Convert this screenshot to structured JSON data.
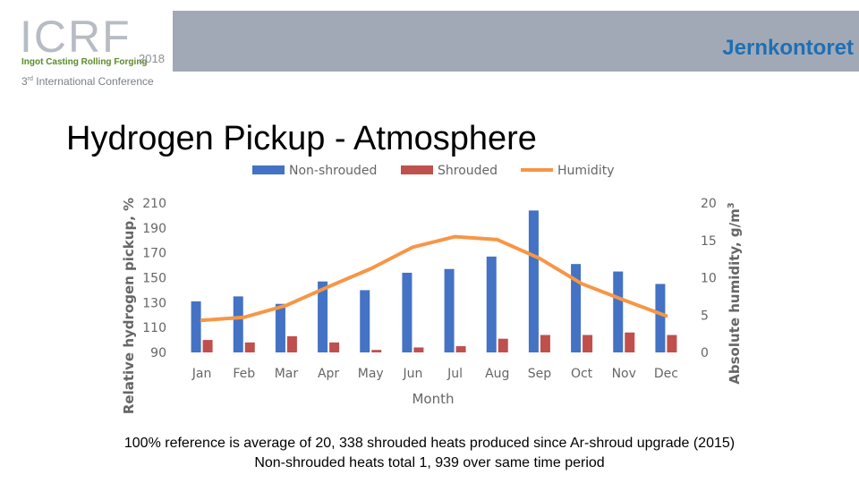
{
  "header": {
    "logo_text": "ICRF",
    "logo_tagline": "Ingot Casting Rolling Forging",
    "logo_year": "2018",
    "conference_prefix": "3",
    "conference_sup": "rd",
    "conference_rest": " International Conference",
    "organization": "Jernkontoret"
  },
  "slide": {
    "title": "Hydrogen Pickup - Atmosphere",
    "caption_line1": "100% reference is average of 20, 338 shrouded heats produced since Ar-shroud upgrade (2015)",
    "caption_line2": "Non-shrouded heats total 1, 939 over same time period"
  },
  "colors": {
    "header_band": "#a1a9b6",
    "non_shrouded": "#4472c4",
    "shrouded": "#c0504d",
    "humidity": "#f79646",
    "organization": "#1f6fb3"
  },
  "chart_data": {
    "type": "bar",
    "categories": [
      "Jan",
      "Feb",
      "Mar",
      "Apr",
      "May",
      "Jun",
      "Jul",
      "Aug",
      "Sep",
      "Oct",
      "Nov",
      "Dec"
    ],
    "series": [
      {
        "name": "Non-shrouded",
        "type": "bar",
        "axis": "left",
        "color": "#4472c4",
        "values": [
          131,
          135,
          129,
          147,
          140,
          154,
          157,
          167,
          204,
          161,
          155,
          145
        ]
      },
      {
        "name": "Shrouded",
        "type": "bar",
        "axis": "left",
        "color": "#c0504d",
        "values": [
          100,
          98,
          103,
          98,
          92,
          94,
          95,
          101,
          104,
          104,
          106,
          104
        ]
      },
      {
        "name": "Humidity",
        "type": "line",
        "axis": "right",
        "color": "#f79646",
        "values": [
          4.3,
          4.7,
          6.3,
          8.8,
          11.2,
          14.1,
          15.5,
          15.1,
          12.6,
          9.2,
          7.0,
          4.9
        ]
      }
    ],
    "xlabel": "Month",
    "ylabel_left": "Relative hydrogen pickup, %",
    "ylabel_right_base": "Absolute humidity, g/m",
    "ylabel_right_sup": "3",
    "ylim_left": [
      90,
      210
    ],
    "yticks_left": [
      90,
      110,
      130,
      150,
      170,
      190,
      210
    ],
    "ylim_right": [
      0,
      20
    ],
    "yticks_right": [
      0,
      5,
      10,
      15,
      20
    ],
    "legend_position": "top",
    "grid": false
  }
}
